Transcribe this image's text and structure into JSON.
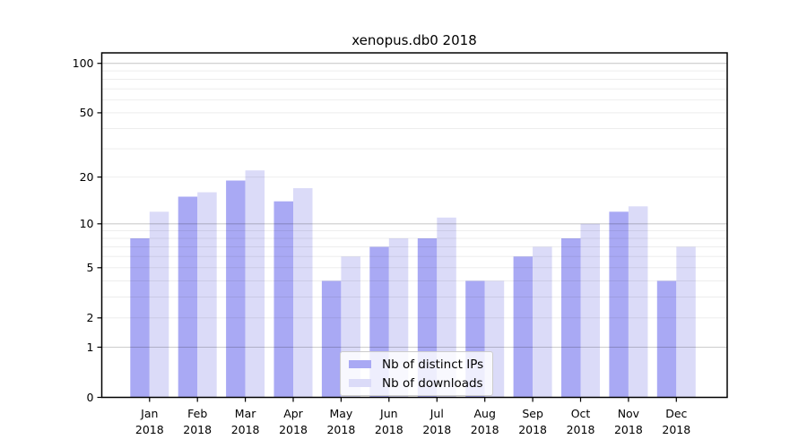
{
  "figure": {
    "background": "#ffffff",
    "text_color": "#000000"
  },
  "chart_data": {
    "type": "bar",
    "title": "xenopus.db0 2018",
    "categories": [
      "Jan",
      "Feb",
      "Mar",
      "Apr",
      "May",
      "Jun",
      "Jul",
      "Aug",
      "Sep",
      "Oct",
      "Nov",
      "Dec"
    ],
    "year_label": "2018",
    "series": [
      {
        "name": "Nb of distinct IPs",
        "color": "#a9a9f4",
        "values": [
          8,
          15,
          19,
          14,
          4,
          7,
          8,
          4,
          6,
          8,
          12,
          4
        ]
      },
      {
        "name": "Nb of downloads",
        "color": "#dbdbf8",
        "values": [
          12,
          16,
          22,
          17,
          6,
          8,
          11,
          4,
          7,
          10,
          13,
          7
        ]
      }
    ],
    "y_scale": "log10(value+1)",
    "y_tick_labels": [
      "100",
      "50",
      "20",
      "10",
      "5",
      "2",
      "1",
      "0"
    ],
    "y_ticks": [
      100,
      50,
      20,
      10,
      5,
      2,
      1,
      0
    ],
    "y_decade_gridlines": [
      100,
      10,
      1
    ],
    "y_minor_gridlines": [
      90,
      80,
      70,
      60,
      40,
      30,
      9,
      8,
      7,
      6,
      4,
      3
    ],
    "ylim": [
      0,
      117
    ],
    "grid": "horizontal",
    "legend_position": "bottom-center-inside",
    "axis_color": "#000000",
    "decade_grid_color": "rgba(0,0,0,0.20)",
    "minor_grid_color": "rgba(0,0,0,0.07)"
  }
}
